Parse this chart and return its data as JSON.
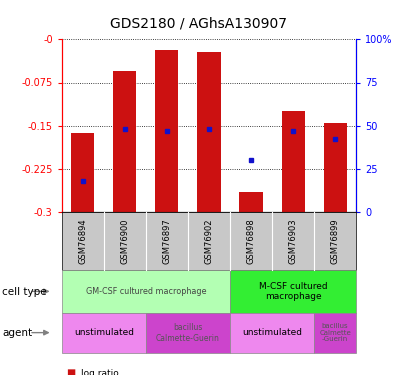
{
  "title": "GDS2180 / AGhsA130907",
  "samples": [
    "GSM76894",
    "GSM76900",
    "GSM76897",
    "GSM76902",
    "GSM76898",
    "GSM76903",
    "GSM76899"
  ],
  "log_ratios": [
    -0.163,
    -0.055,
    -0.018,
    -0.022,
    -0.265,
    -0.125,
    -0.145
  ],
  "percentile_ranks": [
    18,
    48,
    47,
    48,
    30,
    47,
    42
  ],
  "ylim_log": [
    -0.3,
    0.0
  ],
  "ylim_pct": [
    0,
    100
  ],
  "yticks_log": [
    0,
    -0.075,
    -0.15,
    -0.225,
    -0.3
  ],
  "ytick_labels_log": [
    "-0",
    "-0.075",
    "-0.15",
    "-0.225",
    "-0.3"
  ],
  "yticks_pct": [
    0,
    25,
    50,
    75,
    100
  ],
  "ytick_labels_pct": [
    "0",
    "25",
    "50",
    "75",
    "100%"
  ],
  "bar_color": "#cc1111",
  "percentile_color": "#1111cc",
  "bar_width": 0.55,
  "gm_csf_color": "#b3ffb3",
  "m_csf_color": "#33ee33",
  "agent_light_color": "#ee88ee",
  "agent_dark_color": "#cc44cc",
  "gray_color": "#c8c8c8",
  "gray_divider_color": "#ffffff",
  "title_fontsize": 10,
  "axis_fontsize": 7,
  "sample_fontsize": 6,
  "annot_fontsize": 6.5,
  "legend_fontsize": 6.5
}
